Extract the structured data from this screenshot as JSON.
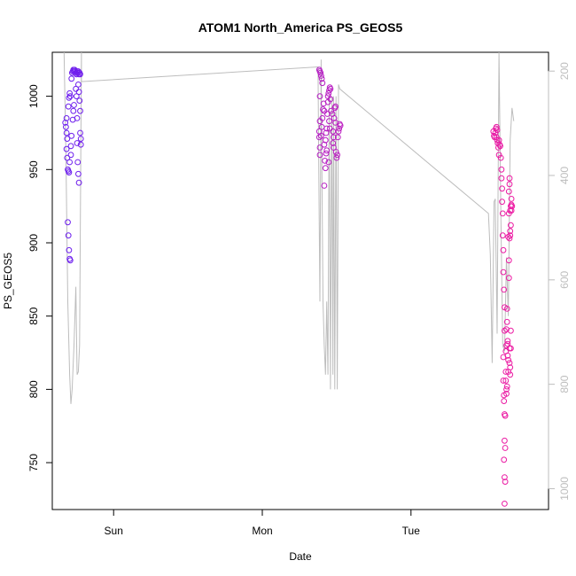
{
  "chart_data": {
    "type": "scatter",
    "title": "ATOM1 North_America PS_GEOS5",
    "xlabel": "Date",
    "ylabel": "PS_GEOS5",
    "x_tick_labels": [
      "Sun",
      "Mon",
      "Tue"
    ],
    "x_tick_values": [
      24,
      48,
      72
    ],
    "xlim": [
      14.1,
      94.2
    ],
    "ylim": [
      718,
      1030
    ],
    "y_ticks": [
      750,
      800,
      850,
      900,
      950,
      1000
    ],
    "y2_ticks": [
      200,
      400,
      600,
      800,
      1000
    ],
    "y2lim": [
      1040,
      164
    ],
    "y2_reversed": true,
    "grid": false,
    "legend": "none",
    "colors": {
      "line": "#bdbdbd",
      "axis": "#000000",
      "secondary_axis": "#bdbdbd",
      "series_start": "#6a1ff0",
      "series_end": "#ee1ca2"
    },
    "series": [
      {
        "marker": "circle-open",
        "points": [
          [
            16.2,
            982
          ],
          [
            16.3,
            979
          ],
          [
            16.4,
            975
          ],
          [
            16.5,
            971
          ],
          [
            16.4,
            964
          ],
          [
            16.5,
            958
          ],
          [
            16.6,
            950
          ],
          [
            16.7,
            949
          ],
          [
            16.8,
            948
          ],
          [
            16.9,
            955
          ],
          [
            16.4,
            985
          ],
          [
            16.7,
            993
          ],
          [
            16.8,
            999
          ],
          [
            16.9,
            1002
          ],
          [
            17.0,
            1000
          ],
          [
            16.6,
            914
          ],
          [
            16.7,
            905
          ],
          [
            16.8,
            895
          ],
          [
            16.9,
            889
          ],
          [
            17.0,
            888
          ],
          [
            17.1,
            960
          ],
          [
            17.1,
            966
          ],
          [
            17.2,
            973
          ],
          [
            17.2,
            1012
          ],
          [
            17.3,
            1016
          ],
          [
            17.4,
            1017
          ],
          [
            17.5,
            1018
          ],
          [
            17.6,
            1017
          ],
          [
            17.7,
            1018
          ],
          [
            17.8,
            1017
          ],
          [
            17.9,
            1016
          ],
          [
            18.0,
            1015
          ],
          [
            18.1,
            1017
          ],
          [
            18.2,
            1016
          ],
          [
            18.3,
            1017
          ],
          [
            18.4,
            1015
          ],
          [
            18.5,
            1016
          ],
          [
            18.6,
            1015
          ],
          [
            17.4,
            984
          ],
          [
            17.5,
            990
          ],
          [
            17.6,
            994
          ],
          [
            17.9,
            1005
          ],
          [
            18.0,
            1000
          ],
          [
            18.1,
            985
          ],
          [
            18.3,
            1008
          ],
          [
            18.4,
            1003
          ],
          [
            18.5,
            997
          ],
          [
            18.6,
            990
          ],
          [
            18.1,
            968
          ],
          [
            18.2,
            955
          ],
          [
            18.3,
            947
          ],
          [
            18.4,
            941
          ],
          [
            18.6,
            975
          ],
          [
            18.7,
            967
          ],
          [
            18.7,
            971
          ]
        ]
      },
      {
        "marker": "circle-open",
        "points": [
          [
            57.2,
            1018
          ],
          [
            57.3,
            1017
          ],
          [
            57.4,
            1016
          ],
          [
            57.5,
            1014
          ],
          [
            57.6,
            1012
          ],
          [
            57.7,
            1009
          ],
          [
            57.3,
            1000
          ],
          [
            57.3,
            983
          ],
          [
            57.2,
            976
          ],
          [
            57.2,
            972
          ],
          [
            57.3,
            965
          ],
          [
            57.3,
            960
          ],
          [
            57.5,
            973
          ],
          [
            57.6,
            979
          ],
          [
            57.7,
            985
          ],
          [
            57.8,
            991
          ],
          [
            57.9,
            995
          ],
          [
            58.0,
            990
          ],
          [
            58.0,
            967
          ],
          [
            58.0,
            939
          ],
          [
            58.1,
            956
          ],
          [
            58.2,
            951
          ],
          [
            58.3,
            961
          ],
          [
            58.2,
            970
          ],
          [
            58.3,
            975
          ],
          [
            58.4,
            978
          ],
          [
            58.5,
            988
          ],
          [
            58.6,
            1000
          ],
          [
            58.6,
            996
          ],
          [
            58.7,
            1002
          ],
          [
            58.8,
            1004
          ],
          [
            58.9,
            1006
          ],
          [
            59.0,
            1005
          ],
          [
            59.0,
            998
          ],
          [
            58.8,
            983
          ],
          [
            58.9,
            978
          ],
          [
            59.1,
            990
          ],
          [
            59.3,
            988
          ],
          [
            59.4,
            976
          ],
          [
            59.5,
            972
          ],
          [
            59.4,
            968
          ],
          [
            59.5,
            965
          ],
          [
            59.6,
            985
          ],
          [
            59.7,
            992
          ],
          [
            59.8,
            993
          ],
          [
            59.8,
            982
          ],
          [
            59.9,
            962
          ],
          [
            60.0,
            958
          ],
          [
            60.1,
            960
          ],
          [
            60.2,
            972
          ],
          [
            60.3,
            976
          ],
          [
            60.4,
            978
          ],
          [
            60.5,
            981
          ],
          [
            60.6,
            980
          ],
          [
            58.7,
            955
          ],
          [
            58.4,
            963
          ]
        ]
      },
      {
        "marker": "circle-open",
        "points": [
          [
            85.3,
            976
          ],
          [
            85.4,
            973
          ],
          [
            85.5,
            972
          ],
          [
            85.6,
            975
          ],
          [
            85.7,
            978
          ],
          [
            85.8,
            979
          ],
          [
            85.9,
            977
          ],
          [
            85.8,
            972
          ],
          [
            85.9,
            970
          ],
          [
            86.0,
            968
          ],
          [
            86.1,
            965
          ],
          [
            86.2,
            960
          ],
          [
            86.2,
            970
          ],
          [
            86.3,
            967
          ],
          [
            86.4,
            966
          ],
          [
            86.5,
            958
          ],
          [
            86.6,
            950
          ],
          [
            86.6,
            944
          ],
          [
            86.7,
            937
          ],
          [
            86.7,
            928
          ],
          [
            86.8,
            920
          ],
          [
            86.8,
            905
          ],
          [
            86.9,
            895
          ],
          [
            86.9,
            880
          ],
          [
            87.0,
            868
          ],
          [
            87.1,
            856
          ],
          [
            87.1,
            840
          ],
          [
            86.9,
            822
          ],
          [
            86.9,
            806
          ],
          [
            87.0,
            796
          ],
          [
            87.0,
            792
          ],
          [
            87.1,
            783
          ],
          [
            87.2,
            782
          ],
          [
            87.1,
            765
          ],
          [
            87.2,
            760
          ],
          [
            87.0,
            752
          ],
          [
            87.1,
            740
          ],
          [
            87.2,
            737
          ],
          [
            87.1,
            722
          ],
          [
            87.3,
            812
          ],
          [
            87.3,
            826
          ],
          [
            87.4,
            830
          ],
          [
            87.4,
            841
          ],
          [
            87.5,
            846
          ],
          [
            87.5,
            855
          ],
          [
            87.6,
            831
          ],
          [
            87.6,
            823
          ],
          [
            87.7,
            820
          ],
          [
            87.7,
            812
          ],
          [
            87.5,
            802
          ],
          [
            87.4,
            800
          ],
          [
            87.4,
            797
          ],
          [
            87.8,
            888
          ],
          [
            87.8,
            876
          ],
          [
            87.7,
            904
          ],
          [
            87.9,
            903
          ],
          [
            88.0,
            905
          ],
          [
            88.0,
            908
          ],
          [
            88.1,
            912
          ],
          [
            88.0,
            922
          ],
          [
            88.1,
            925
          ],
          [
            88.2,
            926
          ],
          [
            88.3,
            925
          ],
          [
            88.2,
            930
          ],
          [
            87.8,
            935
          ],
          [
            87.9,
            940
          ],
          [
            87.9,
            944
          ],
          [
            87.8,
            920
          ],
          [
            87.6,
            833
          ],
          [
            87.3,
            806
          ],
          [
            87.9,
            828
          ],
          [
            87.9,
            818
          ],
          [
            88.0,
            810
          ],
          [
            88.0,
            815
          ],
          [
            88.1,
            828
          ],
          [
            88.1,
            840
          ],
          [
            88.2,
            922
          ]
        ]
      }
    ],
    "line_data": [
      [
        16.0,
        1030
      ],
      [
        16.3,
        960
      ],
      [
        16.6,
        860
      ],
      [
        16.9,
        810
      ],
      [
        17.1,
        790
      ],
      [
        17.3,
        800
      ],
      [
        17.6,
        830
      ],
      [
        17.9,
        870
      ],
      [
        18.1,
        810
      ],
      [
        18.3,
        812
      ],
      [
        18.5,
        830
      ],
      [
        18.8,
        1030
      ],
      [
        18.8,
        1010
      ],
      [
        57.0,
        1020
      ],
      [
        57.1,
        960
      ],
      [
        57.3,
        860
      ],
      [
        57.5,
        1025
      ],
      [
        57.6,
        960
      ],
      [
        57.8,
        860
      ],
      [
        58.0,
        830
      ],
      [
        58.2,
        810
      ],
      [
        58.4,
        860
      ],
      [
        58.6,
        810
      ],
      [
        58.8,
        1000
      ],
      [
        59.0,
        800
      ],
      [
        59.2,
        1000
      ],
      [
        59.4,
        810
      ],
      [
        59.5,
        1000
      ],
      [
        59.7,
        800
      ],
      [
        59.9,
        1000
      ],
      [
        60.1,
        800
      ],
      [
        60.3,
        1008
      ],
      [
        60.5,
        1005
      ],
      [
        84.5,
        920
      ],
      [
        84.8,
        892
      ],
      [
        85.1,
        818
      ],
      [
        85.4,
        928
      ],
      [
        85.6,
        930
      ],
      [
        85.9,
        838
      ],
      [
        86.2,
        1030
      ],
      [
        86.5,
        920
      ],
      [
        86.8,
        830
      ],
      [
        87.1,
        826
      ],
      [
        87.4,
        890
      ],
      [
        87.7,
        850
      ],
      [
        88.0,
        970
      ],
      [
        88.3,
        992
      ],
      [
        88.6,
        983
      ]
    ]
  }
}
